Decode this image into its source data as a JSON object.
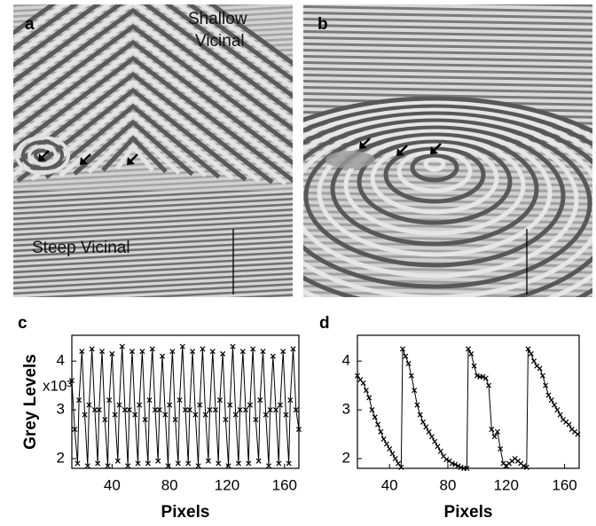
{
  "images": [
    {
      "label": "a",
      "annotations": [
        "Shallow",
        "Vicinal",
        "Steep Vicinal"
      ]
    },
    {
      "label": "b"
    }
  ],
  "chart_data": [
    {
      "type": "line",
      "label": "c",
      "y_label": "Grey Levels",
      "y_multiplier": "x10³",
      "x_label": "Pixels",
      "color": "#000000",
      "marker": "x",
      "xlim": [
        12,
        170
      ],
      "ylim": [
        1.8,
        4.53
      ],
      "xticks": [
        40,
        80,
        120,
        160
      ],
      "yticks": [
        2,
        3,
        4
      ],
      "x": [
        12,
        14,
        16,
        17,
        19,
        21,
        23,
        24,
        26,
        28,
        30,
        31,
        33,
        35,
        37,
        38,
        40,
        42,
        44,
        45,
        47,
        49,
        51,
        52,
        54,
        56,
        58,
        59,
        61,
        63,
        65,
        66,
        68,
        70,
        72,
        73,
        75,
        77,
        79,
        80,
        82,
        84,
        86,
        87,
        89,
        91,
        93,
        94,
        96,
        98,
        100,
        101,
        103,
        105,
        107,
        108,
        110,
        112,
        114,
        115,
        117,
        119,
        121,
        122,
        124,
        126,
        128,
        129,
        131,
        133,
        135,
        136,
        138,
        140,
        142,
        143,
        145,
        147,
        149,
        150,
        152,
        154,
        156,
        157,
        159,
        161,
        163,
        164,
        166,
        168,
        170
      ],
      "series": [
        {
          "values": [
            3.6,
            2.6,
            1.9,
            3.2,
            4.2,
            2.9,
            1.85,
            3.1,
            4.25,
            3.0,
            1.9,
            3.0,
            4.2,
            2.8,
            1.85,
            3.2,
            4.15,
            2.9,
            1.95,
            3.1,
            4.3,
            3.0,
            1.85,
            3.0,
            4.2,
            2.9,
            1.9,
            3.1,
            4.2,
            2.8,
            1.9,
            3.2,
            4.25,
            3.0,
            1.95,
            3.0,
            4.1,
            2.9,
            1.85,
            3.1,
            4.2,
            2.8,
            1.9,
            3.2,
            4.3,
            3.0,
            1.9,
            3.0,
            4.2,
            2.9,
            1.85,
            3.1,
            4.25,
            2.9,
            1.95,
            3.0,
            4.2,
            3.0,
            1.9,
            3.2,
            4.15,
            2.8,
            1.85,
            3.1,
            4.3,
            2.9,
            1.9,
            3.0,
            4.2,
            3.0,
            1.9,
            3.1,
            4.25,
            2.8,
            1.95,
            3.2,
            4.2,
            2.9,
            1.85,
            3.0,
            4.1,
            3.0,
            1.9,
            3.1,
            4.2,
            2.9,
            1.9,
            3.2,
            4.25,
            3.0,
            2.6
          ]
        }
      ]
    },
    {
      "type": "line",
      "label": "d",
      "x_label": "Pixels",
      "color": "#000000",
      "marker": "x",
      "xlim": [
        18,
        170
      ],
      "ylim": [
        1.8,
        4.53
      ],
      "xticks": [
        40,
        80,
        120,
        160
      ],
      "yticks": [
        2,
        3,
        4
      ],
      "x": [
        18,
        20,
        22,
        24,
        26,
        28,
        30,
        32,
        34,
        36,
        38,
        40,
        42,
        44,
        46,
        48,
        49,
        51,
        53,
        55,
        57,
        59,
        61,
        63,
        65,
        67,
        69,
        71,
        73,
        75,
        77,
        79,
        81,
        83,
        85,
        87,
        89,
        91,
        93,
        94,
        96,
        98,
        100,
        102,
        104,
        106,
        108,
        110,
        112,
        114,
        116,
        118,
        120,
        122,
        124,
        126,
        128,
        130,
        132,
        134,
        135,
        137,
        139,
        141,
        143,
        145,
        147,
        149,
        151,
        153,
        155,
        157,
        159,
        161,
        163,
        165,
        167,
        169
      ],
      "series": [
        {
          "values": [
            3.7,
            3.62,
            3.55,
            3.4,
            3.25,
            3.0,
            2.85,
            2.7,
            2.55,
            2.4,
            2.3,
            2.2,
            2.1,
            2.0,
            1.9,
            1.82,
            4.25,
            4.1,
            3.95,
            3.7,
            3.4,
            3.1,
            2.9,
            2.75,
            2.65,
            2.55,
            2.45,
            2.35,
            2.25,
            2.15,
            2.05,
            1.98,
            1.95,
            1.9,
            1.88,
            1.85,
            1.82,
            1.8,
            1.8,
            4.25,
            4.15,
            3.9,
            3.7,
            3.68,
            3.68,
            3.65,
            3.5,
            2.6,
            2.45,
            2.55,
            2.2,
            1.9,
            1.85,
            1.9,
            1.95,
            2.0,
            1.95,
            1.9,
            1.85,
            1.82,
            4.25,
            4.15,
            4.0,
            3.9,
            3.85,
            3.7,
            3.5,
            3.3,
            3.2,
            3.1,
            3.0,
            2.9,
            2.8,
            2.75,
            2.7,
            2.6,
            2.55,
            2.5
          ]
        }
      ]
    }
  ]
}
